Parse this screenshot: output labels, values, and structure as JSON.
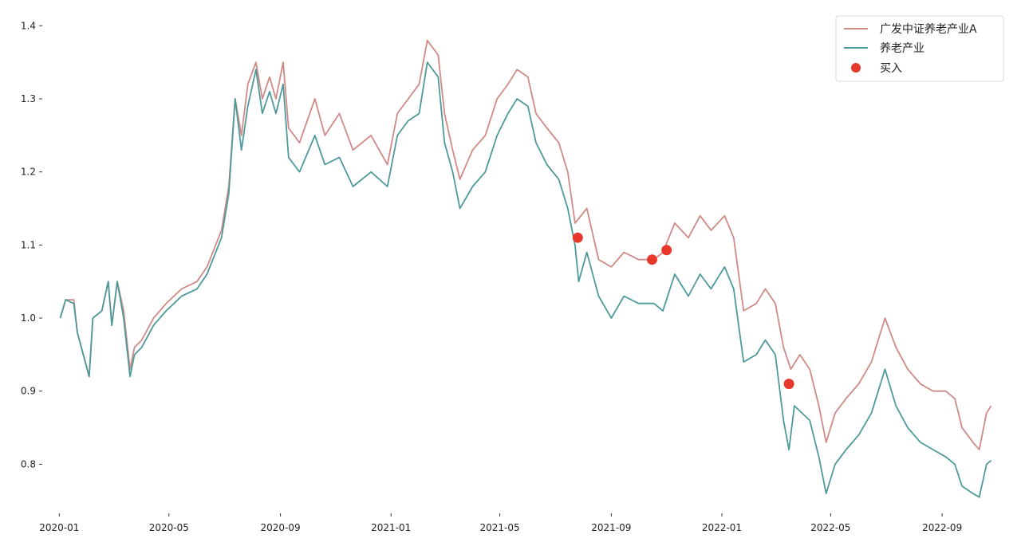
{
  "chart_data": {
    "type": "line",
    "title": "",
    "xlabel": "",
    "ylabel": "",
    "x_ticks": [
      "2020-01",
      "2020-05",
      "2020-09",
      "2021-01",
      "2021-05",
      "2021-09",
      "2022-01",
      "2022-05",
      "2022-09"
    ],
    "y_ticks": [
      0.8,
      0.9,
      1.0,
      1.1,
      1.2,
      1.3,
      1.4
    ],
    "xlim": [
      "2019-12-15",
      "2022-11-05"
    ],
    "ylim": [
      0.735,
      1.42
    ],
    "grid": false,
    "legend_position": "top-right",
    "series": [
      {
        "name": "广发中证养老产业A",
        "color": "#d08a86",
        "points": [
          [
            "2020-01-02",
            1.0
          ],
          [
            "2020-01-08",
            1.025
          ],
          [
            "2020-01-17",
            1.025
          ],
          [
            "2020-01-21",
            0.98
          ],
          [
            "2020-02-03",
            0.92
          ],
          [
            "2020-02-07",
            1.0
          ],
          [
            "2020-02-17",
            1.01
          ],
          [
            "2020-02-24",
            1.05
          ],
          [
            "2020-02-28",
            0.99
          ],
          [
            "2020-03-05",
            1.05
          ],
          [
            "2020-03-12",
            1.01
          ],
          [
            "2020-03-19",
            0.93
          ],
          [
            "2020-03-24",
            0.96
          ],
          [
            "2020-04-01",
            0.97
          ],
          [
            "2020-04-14",
            1.0
          ],
          [
            "2020-04-28",
            1.02
          ],
          [
            "2020-05-15",
            1.04
          ],
          [
            "2020-06-01",
            1.05
          ],
          [
            "2020-06-12",
            1.07
          ],
          [
            "2020-06-28",
            1.12
          ],
          [
            "2020-07-06",
            1.18
          ],
          [
            "2020-07-13",
            1.3
          ],
          [
            "2020-07-20",
            1.25
          ],
          [
            "2020-07-27",
            1.32
          ],
          [
            "2020-08-05",
            1.35
          ],
          [
            "2020-08-12",
            1.3
          ],
          [
            "2020-08-20",
            1.33
          ],
          [
            "2020-08-27",
            1.3
          ],
          [
            "2020-09-04",
            1.35
          ],
          [
            "2020-09-10",
            1.26
          ],
          [
            "2020-09-22",
            1.24
          ],
          [
            "2020-10-09",
            1.3
          ],
          [
            "2020-10-20",
            1.25
          ],
          [
            "2020-11-05",
            1.28
          ],
          [
            "2020-11-20",
            1.23
          ],
          [
            "2020-12-10",
            1.25
          ],
          [
            "2020-12-28",
            1.21
          ],
          [
            "2021-01-08",
            1.28
          ],
          [
            "2021-01-20",
            1.3
          ],
          [
            "2021-02-01",
            1.32
          ],
          [
            "2021-02-10",
            1.38
          ],
          [
            "2021-02-22",
            1.36
          ],
          [
            "2021-03-01",
            1.28
          ],
          [
            "2021-03-10",
            1.23
          ],
          [
            "2021-03-18",
            1.19
          ],
          [
            "2021-04-01",
            1.23
          ],
          [
            "2021-04-15",
            1.25
          ],
          [
            "2021-04-28",
            1.3
          ],
          [
            "2021-05-10",
            1.32
          ],
          [
            "2021-05-20",
            1.34
          ],
          [
            "2021-06-01",
            1.33
          ],
          [
            "2021-06-10",
            1.28
          ],
          [
            "2021-06-22",
            1.26
          ],
          [
            "2021-07-05",
            1.24
          ],
          [
            "2021-07-15",
            1.2
          ],
          [
            "2021-07-23",
            1.13
          ],
          [
            "2021-08-05",
            1.15
          ],
          [
            "2021-08-18",
            1.08
          ],
          [
            "2021-09-01",
            1.07
          ],
          [
            "2021-09-15",
            1.09
          ],
          [
            "2021-10-01",
            1.08
          ],
          [
            "2021-10-18",
            1.08
          ],
          [
            "2021-10-28",
            1.09
          ],
          [
            "2021-11-10",
            1.13
          ],
          [
            "2021-11-25",
            1.11
          ],
          [
            "2021-12-08",
            1.14
          ],
          [
            "2021-12-20",
            1.12
          ],
          [
            "2022-01-04",
            1.14
          ],
          [
            "2022-01-14",
            1.11
          ],
          [
            "2022-01-25",
            1.01
          ],
          [
            "2022-02-08",
            1.02
          ],
          [
            "2022-02-18",
            1.04
          ],
          [
            "2022-03-01",
            1.02
          ],
          [
            "2022-03-10",
            0.96
          ],
          [
            "2022-03-18",
            0.93
          ],
          [
            "2022-03-28",
            0.95
          ],
          [
            "2022-04-08",
            0.93
          ],
          [
            "2022-04-18",
            0.88
          ],
          [
            "2022-04-26",
            0.83
          ],
          [
            "2022-05-06",
            0.87
          ],
          [
            "2022-05-18",
            0.89
          ],
          [
            "2022-06-01",
            0.91
          ],
          [
            "2022-06-15",
            0.94
          ],
          [
            "2022-06-30",
            1.0
          ],
          [
            "2022-07-12",
            0.96
          ],
          [
            "2022-07-25",
            0.93
          ],
          [
            "2022-08-08",
            0.91
          ],
          [
            "2022-08-22",
            0.9
          ],
          [
            "2022-09-05",
            0.9
          ],
          [
            "2022-09-15",
            0.89
          ],
          [
            "2022-09-23",
            0.85
          ],
          [
            "2022-10-05",
            0.83
          ],
          [
            "2022-10-12",
            0.82
          ],
          [
            "2022-10-20",
            0.87
          ],
          [
            "2022-10-25",
            0.88
          ]
        ]
      },
      {
        "name": "养老产业",
        "color": "#4e9a9a",
        "points": [
          [
            "2020-01-02",
            1.0
          ],
          [
            "2020-01-08",
            1.025
          ],
          [
            "2020-01-17",
            1.02
          ],
          [
            "2020-01-21",
            0.98
          ],
          [
            "2020-02-03",
            0.92
          ],
          [
            "2020-02-07",
            1.0
          ],
          [
            "2020-02-17",
            1.01
          ],
          [
            "2020-02-24",
            1.05
          ],
          [
            "2020-02-28",
            0.99
          ],
          [
            "2020-03-05",
            1.05
          ],
          [
            "2020-03-12",
            1.0
          ],
          [
            "2020-03-19",
            0.92
          ],
          [
            "2020-03-24",
            0.95
          ],
          [
            "2020-04-01",
            0.96
          ],
          [
            "2020-04-14",
            0.99
          ],
          [
            "2020-04-28",
            1.01
          ],
          [
            "2020-05-15",
            1.03
          ],
          [
            "2020-06-01",
            1.04
          ],
          [
            "2020-06-12",
            1.06
          ],
          [
            "2020-06-28",
            1.11
          ],
          [
            "2020-07-06",
            1.17
          ],
          [
            "2020-07-13",
            1.3
          ],
          [
            "2020-07-20",
            1.23
          ],
          [
            "2020-07-27",
            1.29
          ],
          [
            "2020-08-05",
            1.34
          ],
          [
            "2020-08-12",
            1.28
          ],
          [
            "2020-08-20",
            1.31
          ],
          [
            "2020-08-27",
            1.28
          ],
          [
            "2020-09-04",
            1.32
          ],
          [
            "2020-09-10",
            1.22
          ],
          [
            "2020-09-22",
            1.2
          ],
          [
            "2020-10-09",
            1.25
          ],
          [
            "2020-10-20",
            1.21
          ],
          [
            "2020-11-05",
            1.22
          ],
          [
            "2020-11-20",
            1.18
          ],
          [
            "2020-12-10",
            1.2
          ],
          [
            "2020-12-28",
            1.18
          ],
          [
            "2021-01-08",
            1.25
          ],
          [
            "2021-01-20",
            1.27
          ],
          [
            "2021-02-01",
            1.28
          ],
          [
            "2021-02-10",
            1.35
          ],
          [
            "2021-02-22",
            1.33
          ],
          [
            "2021-03-01",
            1.24
          ],
          [
            "2021-03-10",
            1.2
          ],
          [
            "2021-03-18",
            1.15
          ],
          [
            "2021-04-01",
            1.18
          ],
          [
            "2021-04-15",
            1.2
          ],
          [
            "2021-04-28",
            1.25
          ],
          [
            "2021-05-10",
            1.28
          ],
          [
            "2021-05-20",
            1.3
          ],
          [
            "2021-06-01",
            1.29
          ],
          [
            "2021-06-10",
            1.24
          ],
          [
            "2021-06-22",
            1.21
          ],
          [
            "2021-07-05",
            1.19
          ],
          [
            "2021-07-15",
            1.15
          ],
          [
            "2021-07-23",
            1.1
          ],
          [
            "2021-07-27",
            1.05
          ],
          [
            "2021-08-05",
            1.09
          ],
          [
            "2021-08-18",
            1.03
          ],
          [
            "2021-09-01",
            1.0
          ],
          [
            "2021-09-15",
            1.03
          ],
          [
            "2021-10-01",
            1.02
          ],
          [
            "2021-10-18",
            1.02
          ],
          [
            "2021-10-28",
            1.01
          ],
          [
            "2021-11-10",
            1.06
          ],
          [
            "2021-11-25",
            1.03
          ],
          [
            "2021-12-08",
            1.06
          ],
          [
            "2021-12-20",
            1.04
          ],
          [
            "2022-01-04",
            1.07
          ],
          [
            "2022-01-14",
            1.04
          ],
          [
            "2022-01-25",
            0.94
          ],
          [
            "2022-02-08",
            0.95
          ],
          [
            "2022-02-18",
            0.97
          ],
          [
            "2022-03-01",
            0.95
          ],
          [
            "2022-03-10",
            0.86
          ],
          [
            "2022-03-16",
            0.82
          ],
          [
            "2022-03-22",
            0.88
          ],
          [
            "2022-04-08",
            0.86
          ],
          [
            "2022-04-18",
            0.81
          ],
          [
            "2022-04-26",
            0.76
          ],
          [
            "2022-05-06",
            0.8
          ],
          [
            "2022-05-18",
            0.82
          ],
          [
            "2022-06-01",
            0.84
          ],
          [
            "2022-06-15",
            0.87
          ],
          [
            "2022-06-30",
            0.93
          ],
          [
            "2022-07-12",
            0.88
          ],
          [
            "2022-07-25",
            0.85
          ],
          [
            "2022-08-08",
            0.83
          ],
          [
            "2022-08-22",
            0.82
          ],
          [
            "2022-09-05",
            0.81
          ],
          [
            "2022-09-15",
            0.8
          ],
          [
            "2022-09-23",
            0.77
          ],
          [
            "2022-10-05",
            0.76
          ],
          [
            "2022-10-12",
            0.755
          ],
          [
            "2022-10-20",
            0.8
          ],
          [
            "2022-10-25",
            0.805
          ]
        ]
      },
      {
        "name": "买入",
        "type": "scatter",
        "color": "#e8382c",
        "points": [
          [
            "2021-07-26",
            1.11
          ],
          [
            "2021-10-16",
            1.08
          ],
          [
            "2021-11-01",
            1.093
          ],
          [
            "2022-03-16",
            0.91
          ]
        ]
      }
    ]
  }
}
